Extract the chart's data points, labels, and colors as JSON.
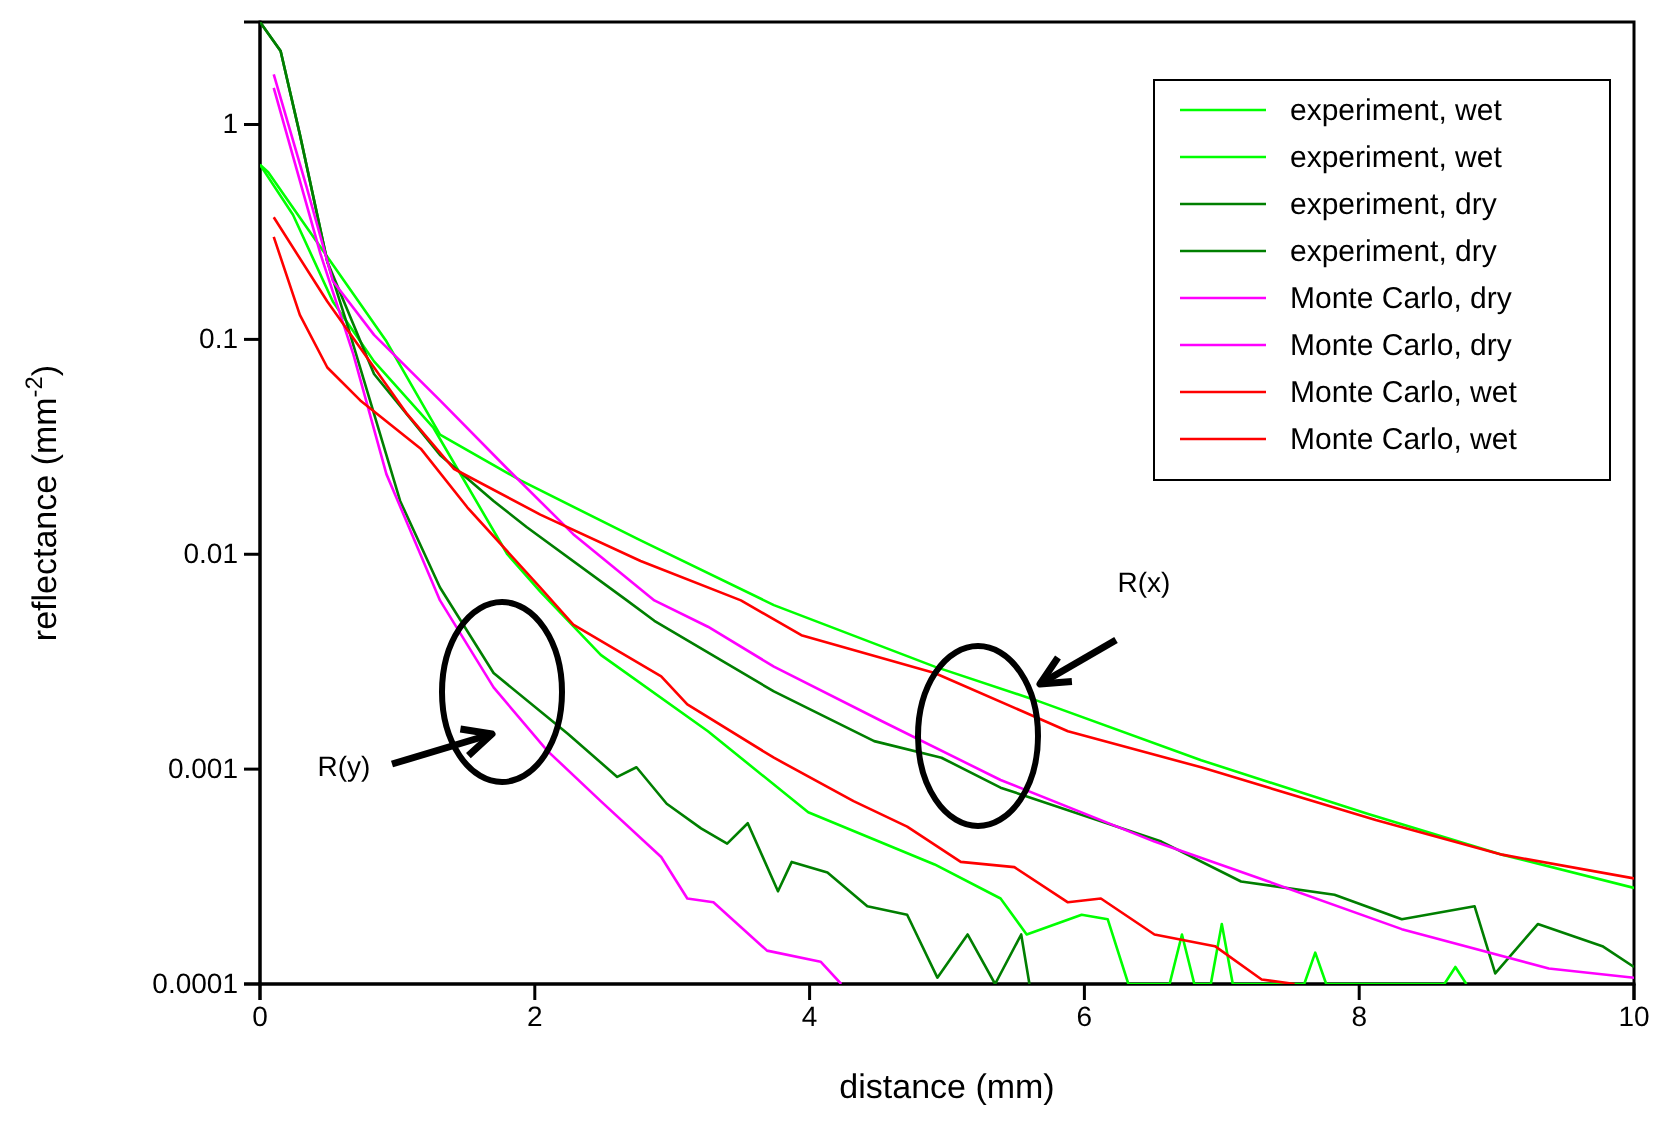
{
  "chart_data": {
    "type": "line",
    "xlabel": "distance (mm)",
    "ylabel": "reflectance (mm$^{-2}$)",
    "xlim": [
      0,
      10
    ],
    "xticks": [
      0,
      2,
      4,
      6,
      8,
      10
    ],
    "ylim": [
      0.0001,
      3
    ],
    "yticks": [
      0.0001,
      0.001,
      0.01,
      0.1,
      1
    ],
    "log": "y",
    "grid": false,
    "legend": "top right",
    "line_style": "solid",
    "marker": "none",
    "annotations": [
      "R(x)",
      "R(y)"
    ],
    "series": [
      {
        "name": "experiment, wet",
        "color": "#00ff00",
        "x": [
          0,
          0.06,
          0.24,
          0.92,
          1.31,
          1.9,
          2.77,
          3.74,
          4.91,
          5.64,
          6.85,
          8.06,
          9.04,
          10
        ],
        "values": [
          0.65,
          0.6,
          0.41,
          0.098,
          0.036,
          0.022,
          0.0116,
          0.0058,
          0.003,
          0.0021,
          0.0011,
          0.00062,
          0.0004,
          0.00028
        ]
      },
      {
        "name": "experiment, wet",
        "color": "#00ff00",
        "x": [
          0,
          0.24,
          0.53,
          0.83,
          1.26,
          1.8,
          2.04,
          2.48,
          3.26,
          3.99,
          4.91,
          5.39,
          5.58,
          5.98,
          6.17,
          6.32,
          6.62,
          6.71,
          6.8,
          6.92,
          7.0,
          7.08,
          7.6,
          7.68,
          7.76,
          8.62,
          8.7,
          8.78
        ],
        "values": [
          0.65,
          0.38,
          0.15,
          0.079,
          0.039,
          0.01,
          0.0067,
          0.0034,
          0.0015,
          0.00063,
          0.00036,
          0.00025,
          0.00017,
          0.00021,
          0.0002,
          0.0001,
          0.0001,
          0.00017,
          0.0001,
          0.0001,
          0.00019,
          0.0001,
          0.0001,
          0.00014,
          0.0001,
          0.0001,
          0.00012,
          0.0001
        ]
      },
      {
        "name": "experiment, dry",
        "color": "#007f00",
        "x": [
          0,
          0.15,
          0.29,
          0.49,
          0.83,
          1.31,
          1.7,
          1.94,
          2.67,
          2.87,
          3.74,
          4.47,
          4.96,
          5.39,
          6.56,
          7.14,
          7.82,
          8.31,
          8.84,
          8.99,
          9.3,
          9.77,
          10
        ],
        "values": [
          3,
          2.2,
          0.9,
          0.23,
          0.069,
          0.029,
          0.0177,
          0.0134,
          0.0061,
          0.0049,
          0.0023,
          0.00135,
          0.00113,
          0.00082,
          0.00046,
          0.0003,
          0.00026,
          0.0002,
          0.00023,
          0.000112,
          0.00019,
          0.00015,
          0.00012
        ]
      },
      {
        "name": "experiment, dry",
        "color": "#007f00",
        "x": [
          0,
          0.15,
          0.29,
          0.49,
          0.63,
          0.83,
          1.02,
          1.31,
          1.7,
          2.24,
          2.6,
          2.74,
          2.96,
          3.21,
          3.4,
          3.55,
          3.77,
          3.87,
          4.13,
          4.42,
          4.71,
          4.93,
          5.15,
          5.35,
          5.54,
          5.6
        ],
        "values": [
          3,
          2.2,
          0.9,
          0.23,
          0.12,
          0.045,
          0.0177,
          0.007,
          0.0028,
          0.00146,
          0.00092,
          0.00102,
          0.00069,
          0.00053,
          0.00045,
          0.00056,
          0.00027,
          0.00037,
          0.00033,
          0.00023,
          0.00021,
          0.000107,
          0.00017,
          0.0001,
          0.00017,
          0.0001
        ]
      },
      {
        "name": "Monte Carlo, dry",
        "color": "#ff00ff",
        "x": [
          0.1,
          0.34,
          0.53,
          0.83,
          1.31,
          1.8,
          2.28,
          2.87,
          3.26,
          3.74,
          4.52,
          5.39,
          6.51,
          7.34,
          8.31,
          9.38,
          10
        ],
        "values": [
          1.71,
          0.51,
          0.187,
          0.105,
          0.052,
          0.025,
          0.0124,
          0.0061,
          0.0046,
          0.003,
          0.00168,
          0.00089,
          0.00046,
          0.0003,
          0.00018,
          0.000118,
          0.000107
        ]
      },
      {
        "name": "Monte Carlo, dry",
        "color": "#ff00ff",
        "x": [
          0.1,
          0.44,
          0.68,
          0.92,
          1.31,
          1.7,
          2.09,
          2.48,
          2.92,
          3.11,
          3.3,
          3.69,
          4.08,
          4.23
        ],
        "values": [
          1.48,
          0.25,
          0.085,
          0.0236,
          0.0061,
          0.0024,
          0.00122,
          0.00071,
          0.00039,
          0.00025,
          0.00024,
          0.000143,
          0.000127,
          0.0001
        ]
      },
      {
        "name": "Monte Carlo, wet",
        "color": "#ff0000",
        "x": [
          0.1,
          0.49,
          1.07,
          1.41,
          2.04,
          2.77,
          3.5,
          3.94,
          4.91,
          5.54,
          5.88,
          6.85,
          8.12,
          9.04,
          10
        ],
        "values": [
          0.37,
          0.15,
          0.045,
          0.025,
          0.0153,
          0.0093,
          0.0061,
          0.0042,
          0.0028,
          0.00187,
          0.0015,
          0.00102,
          0.00058,
          0.0004,
          0.00031
        ]
      },
      {
        "name": "Monte Carlo, wet",
        "color": "#ff0000",
        "x": [
          0.1,
          0.29,
          0.49,
          0.73,
          1.17,
          1.51,
          2.04,
          2.28,
          2.92,
          3.11,
          3.74,
          4.32,
          4.71,
          5.1,
          5.49,
          5.88,
          6.12,
          6.51,
          6.95,
          7.29,
          7.53
        ],
        "values": [
          0.3,
          0.13,
          0.074,
          0.052,
          0.031,
          0.0165,
          0.007,
          0.0047,
          0.0027,
          0.002,
          0.00113,
          0.00071,
          0.00054,
          0.00037,
          0.00035,
          0.00024,
          0.00025,
          0.00017,
          0.00015,
          0.000105,
          0.0001
        ]
      }
    ]
  }
}
